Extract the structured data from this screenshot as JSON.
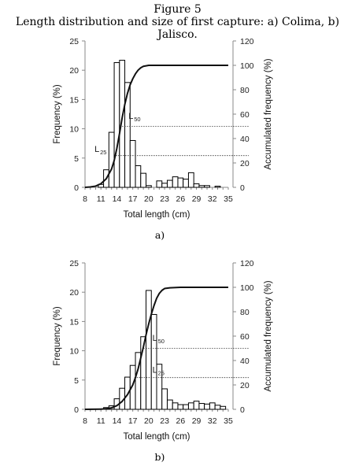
{
  "figure": {
    "number": "Figure 5",
    "caption": "Length distribution and size of first capture: a) Colima, b) Jalisco."
  },
  "chart_data": [
    {
      "type": "bar",
      "panel_label": "a)",
      "xlabel": "Total length (cm)",
      "ylabel": "Frequency (%)",
      "y2label": "Accumulated frequency (%)",
      "xlim": [
        8,
        35
      ],
      "ylim": [
        0,
        25
      ],
      "y2lim": [
        0,
        120
      ],
      "xticks": [
        8,
        11,
        14,
        17,
        20,
        23,
        26,
        29,
        32,
        35
      ],
      "yticks": [
        0,
        5,
        10,
        15,
        20,
        25
      ],
      "y2ticks": [
        0,
        20,
        40,
        60,
        80,
        100,
        120
      ],
      "bar_width": 1,
      "bars": {
        "x": [
          11,
          12,
          13,
          14,
          15,
          16,
          17,
          18,
          19,
          20,
          21,
          22,
          23,
          24,
          25,
          26,
          27,
          28,
          29,
          30,
          31,
          32,
          33,
          34
        ],
        "values": [
          0.5,
          3.0,
          9.4,
          21.3,
          21.7,
          17.9,
          8.0,
          3.7,
          2.4,
          0.3,
          0,
          1.1,
          0.7,
          1.2,
          1.8,
          1.6,
          1.4,
          2.5,
          0.6,
          0.3,
          0.3,
          0,
          0.2,
          0
        ]
      },
      "cumulative": {
        "x": [
          8,
          9,
          10,
          11,
          12,
          13,
          13.5,
          14,
          14.5,
          15,
          15.5,
          16,
          16.5,
          17,
          17.5,
          18,
          18.5,
          19,
          20,
          21,
          22,
          25,
          30,
          35
        ],
        "values": [
          0,
          0.3,
          1,
          3,
          7,
          15,
          22,
          32,
          44,
          57,
          68,
          77,
          84,
          89,
          93,
          96,
          98,
          99.2,
          100,
          100,
          100,
          100,
          100,
          100
        ]
      },
      "reference_lines": [
        {
          "label_main": "L",
          "label_sub": "50",
          "y2": 50,
          "x_start": 15.0,
          "label_x": 16.2,
          "label_y2": 56
        },
        {
          "label_main": "L",
          "label_sub": "25",
          "y2": 26,
          "x_start": 13.8,
          "label_x": 9.8,
          "label_y2": 29
        }
      ]
    },
    {
      "type": "bar",
      "panel_label": "b)",
      "xlabel": "Total length (cm)",
      "ylabel": "Frequency (%)",
      "y2label": "Accumulated frequency (%)",
      "xlim": [
        8,
        35
      ],
      "ylim": [
        0,
        25
      ],
      "y2lim": [
        0,
        120
      ],
      "xticks": [
        8,
        11,
        14,
        17,
        20,
        23,
        26,
        29,
        32,
        35
      ],
      "yticks": [
        0,
        5,
        10,
        15,
        20,
        25
      ],
      "y2ticks": [
        0,
        20,
        40,
        60,
        80,
        100,
        120
      ],
      "bar_width": 1,
      "bars": {
        "x": [
          12,
          13,
          14,
          15,
          16,
          17,
          18,
          19,
          20,
          21,
          22,
          23,
          24,
          25,
          26,
          27,
          28,
          29,
          30,
          31,
          32,
          33,
          34
        ],
        "values": [
          0.3,
          0.6,
          1.8,
          3.6,
          5.5,
          7.5,
          9.7,
          12.4,
          20.3,
          16.2,
          7.7,
          3.5,
          1.6,
          1.1,
          0.8,
          0.8,
          1.1,
          1.4,
          1.0,
          0.9,
          1.1,
          0.7,
          0.5
        ]
      },
      "cumulative": {
        "x": [
          8,
          11,
          12,
          13,
          14,
          15,
          16,
          17,
          17.5,
          18,
          18.5,
          19,
          19.5,
          20,
          20.5,
          21,
          21.5,
          22,
          22.5,
          23,
          24,
          26,
          30,
          35
        ],
        "values": [
          0,
          0.2,
          0.5,
          1.2,
          3,
          6.5,
          12,
          20,
          26,
          33,
          42,
          51,
          61,
          70,
          78,
          85,
          91,
          95,
          97.5,
          99,
          99.6,
          100,
          100,
          100
        ]
      },
      "reference_lines": [
        {
          "label_main": "L",
          "label_sub": "50",
          "y2": 50,
          "x_start": 19.0,
          "label_x": 20.7,
          "label_y2": 56
        },
        {
          "label_main": "L",
          "label_sub": "25",
          "y2": 26,
          "x_start": 17.3,
          "label_x": 20.7,
          "label_y2": 30
        }
      ]
    }
  ]
}
